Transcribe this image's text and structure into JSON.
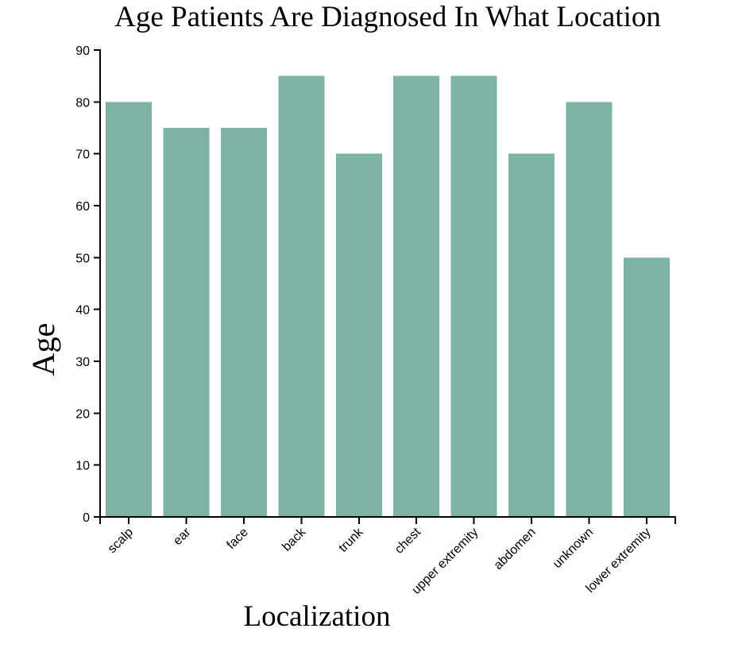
{
  "chart_data": {
    "type": "bar",
    "title": "Age Patients Are Diagnosed In What Location",
    "xlabel": "Localization",
    "ylabel": "Age",
    "categories": [
      "scalp",
      "ear",
      "face",
      "back",
      "trunk",
      "chest",
      "upper extremity",
      "abdomen",
      "unknown",
      "lower extremity"
    ],
    "values": [
      80,
      75,
      75,
      85,
      70,
      85,
      85,
      70,
      80,
      50
    ],
    "ylim": [
      0,
      90
    ],
    "yticks": [
      0,
      10,
      20,
      30,
      40,
      50,
      60,
      70,
      80,
      90
    ],
    "grid": false,
    "legend": "none",
    "bar_color": "#7eb2a5"
  }
}
